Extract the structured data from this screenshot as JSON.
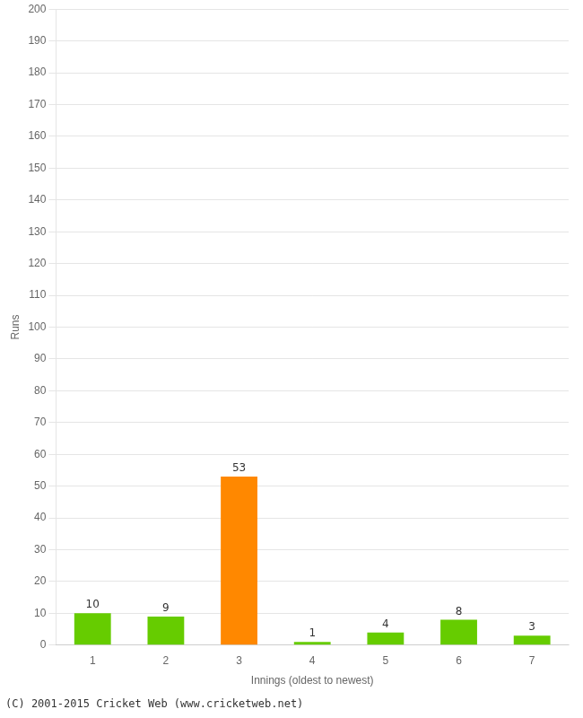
{
  "chart_data": {
    "type": "bar",
    "categories": [
      "1",
      "2",
      "3",
      "4",
      "5",
      "6",
      "7"
    ],
    "values": [
      10,
      9,
      53,
      1,
      4,
      8,
      3
    ],
    "colors": [
      "#66cc00",
      "#66cc00",
      "#ff8800",
      "#66cc00",
      "#66cc00",
      "#66cc00",
      "#66cc00"
    ],
    "xlabel": "Innings (oldest to newest)",
    "ylabel": "Runs",
    "ylim": [
      0,
      200
    ],
    "yticks": [
      0,
      10,
      20,
      30,
      40,
      50,
      60,
      70,
      80,
      90,
      100,
      110,
      120,
      130,
      140,
      150,
      160,
      170,
      180,
      190,
      200
    ],
    "grid": true,
    "data_labels": true,
    "footer": "(C) 2001-2015 Cricket Web (www.cricketweb.net)"
  }
}
